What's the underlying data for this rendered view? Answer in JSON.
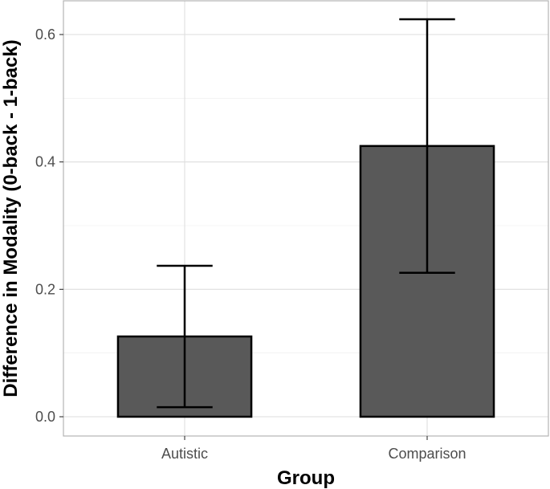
{
  "chart_data": {
    "type": "bar",
    "categories": [
      "Autistic",
      "Comparison"
    ],
    "values": [
      0.126,
      0.425
    ],
    "error_low": [
      0.015,
      0.226
    ],
    "error_high": [
      0.237,
      0.624
    ],
    "xlabel": "Group",
    "ylabel": "Difference in Modality (0-back - 1-back)",
    "ylim": [
      -0.03,
      0.66
    ],
    "yticks": [
      0.0,
      0.2,
      0.4,
      0.6
    ],
    "ytick_labels": [
      "0.0",
      "0.2",
      "0.4",
      "0.6"
    ],
    "grid": true,
    "bar_color": "#595959",
    "bar_edge_color": "#000000"
  }
}
